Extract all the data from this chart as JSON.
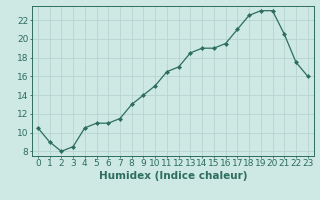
{
  "x": [
    0,
    1,
    2,
    3,
    4,
    5,
    6,
    7,
    8,
    9,
    10,
    11,
    12,
    13,
    14,
    15,
    16,
    17,
    18,
    19,
    20,
    21,
    22,
    23
  ],
  "y": [
    10.5,
    9.0,
    8.0,
    8.5,
    10.5,
    11.0,
    11.0,
    11.5,
    13.0,
    14.0,
    15.0,
    16.5,
    17.0,
    18.5,
    19.0,
    19.0,
    19.5,
    21.0,
    22.5,
    23.0,
    23.0,
    20.5,
    17.5,
    16.0
  ],
  "line_color": "#2d6e5e",
  "marker": "D",
  "marker_size": 2.0,
  "bg_color": "#cee8e4",
  "grid_color": "#b8d4d0",
  "xlabel": "Humidex (Indice chaleur)",
  "xlim": [
    -0.5,
    23.5
  ],
  "ylim": [
    7.5,
    23.5
  ],
  "yticks": [
    8,
    10,
    12,
    14,
    16,
    18,
    20,
    22
  ],
  "xticks": [
    0,
    1,
    2,
    3,
    4,
    5,
    6,
    7,
    8,
    9,
    10,
    11,
    12,
    13,
    14,
    15,
    16,
    17,
    18,
    19,
    20,
    21,
    22,
    23
  ],
  "xlabel_fontsize": 7.5,
  "tick_fontsize": 6.5
}
